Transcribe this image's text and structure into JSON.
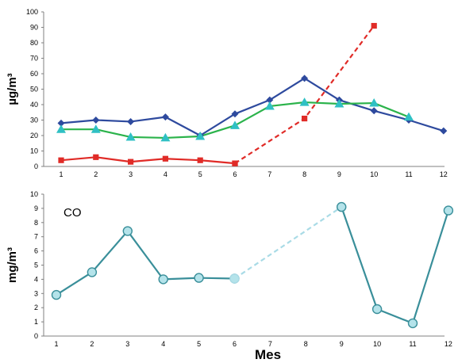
{
  "chart_data": [
    {
      "type": "line",
      "title": "",
      "xlabel": "",
      "ylabel": "µg/m³",
      "x": [
        1,
        2,
        3,
        4,
        5,
        6,
        7,
        8,
        9,
        10,
        11,
        12
      ],
      "xlim": [
        1,
        12
      ],
      "ylim": [
        0,
        100
      ],
      "yticks": [
        0,
        10,
        20,
        30,
        40,
        50,
        60,
        70,
        80,
        90,
        100
      ],
      "grid": false,
      "legend": "none",
      "series": [
        {
          "color": "#2e4a9e",
          "marker": "diamond",
          "line_style": "solid",
          "points": [
            [
              1,
              28
            ],
            [
              2,
              30
            ],
            [
              3,
              29
            ],
            [
              4,
              32
            ],
            [
              5,
              20
            ],
            [
              6,
              34
            ],
            [
              7,
              43
            ],
            [
              8,
              57
            ],
            [
              9,
              43
            ],
            [
              10,
              36
            ],
            [
              11,
              30
            ],
            [
              12,
              23
            ]
          ]
        },
        {
          "color": "#2bb34b",
          "marker_color": "#2fc0c4",
          "marker": "triangle",
          "line_style": "solid",
          "points": [
            [
              1,
              24
            ],
            [
              2,
              24
            ],
            [
              3,
              19
            ],
            [
              4,
              18.5
            ],
            [
              5,
              19.5
            ],
            [
              6,
              26.5
            ],
            [
              7,
              39
            ],
            [
              8,
              41.5
            ],
            [
              9,
              40.5
            ],
            [
              10,
              41
            ],
            [
              11,
              32
            ]
          ]
        },
        {
          "color": "#e02b27",
          "marker": "square",
          "line_style": "solid",
          "points": [
            [
              1,
              4
            ],
            [
              2,
              6
            ],
            [
              3,
              3
            ],
            [
              4,
              5
            ],
            [
              5,
              4
            ],
            [
              6,
              2
            ]
          ]
        },
        {
          "color": "#e02b27",
          "marker": "square",
          "line_style": "dashed",
          "points": [
            [
              6,
              2
            ],
            [
              8,
              31
            ],
            [
              10,
              91
            ]
          ]
        }
      ]
    },
    {
      "type": "line",
      "title": "",
      "annotation": "CO",
      "xlabel": "Mes",
      "ylabel": "mg/m³",
      "x": [
        1,
        2,
        3,
        4,
        5,
        6,
        7,
        8,
        9,
        10,
        11,
        12
      ],
      "xlim": [
        1,
        12
      ],
      "ylim": [
        0,
        10
      ],
      "yticks": [
        0,
        1,
        2,
        3,
        4,
        5,
        6,
        7,
        8,
        9,
        10
      ],
      "grid": false,
      "legend": "none",
      "series": [
        {
          "color": "#3a8f9a",
          "marker": "circle",
          "marker_color": "#b4e3ea",
          "line_style": "solid",
          "points": [
            [
              1,
              2.9
            ],
            [
              2,
              4.5
            ],
            [
              3,
              7.4
            ],
            [
              4,
              4.0
            ],
            [
              5,
              4.1
            ],
            [
              6,
              4.05
            ]
          ]
        },
        {
          "color": "#a9dbe6",
          "marker": "circle",
          "marker_color": "#b4e3ea",
          "line_style": "dashed",
          "points": [
            [
              6,
              4.05
            ],
            [
              9,
              9.1
            ]
          ]
        },
        {
          "color": "#3a8f9a",
          "marker": "circle",
          "marker_color": "#b4e3ea",
          "line_style": "solid",
          "points": [
            [
              9,
              9.1
            ],
            [
              10,
              1.9
            ],
            [
              11,
              0.9
            ],
            [
              12,
              8.85
            ]
          ]
        }
      ]
    }
  ]
}
